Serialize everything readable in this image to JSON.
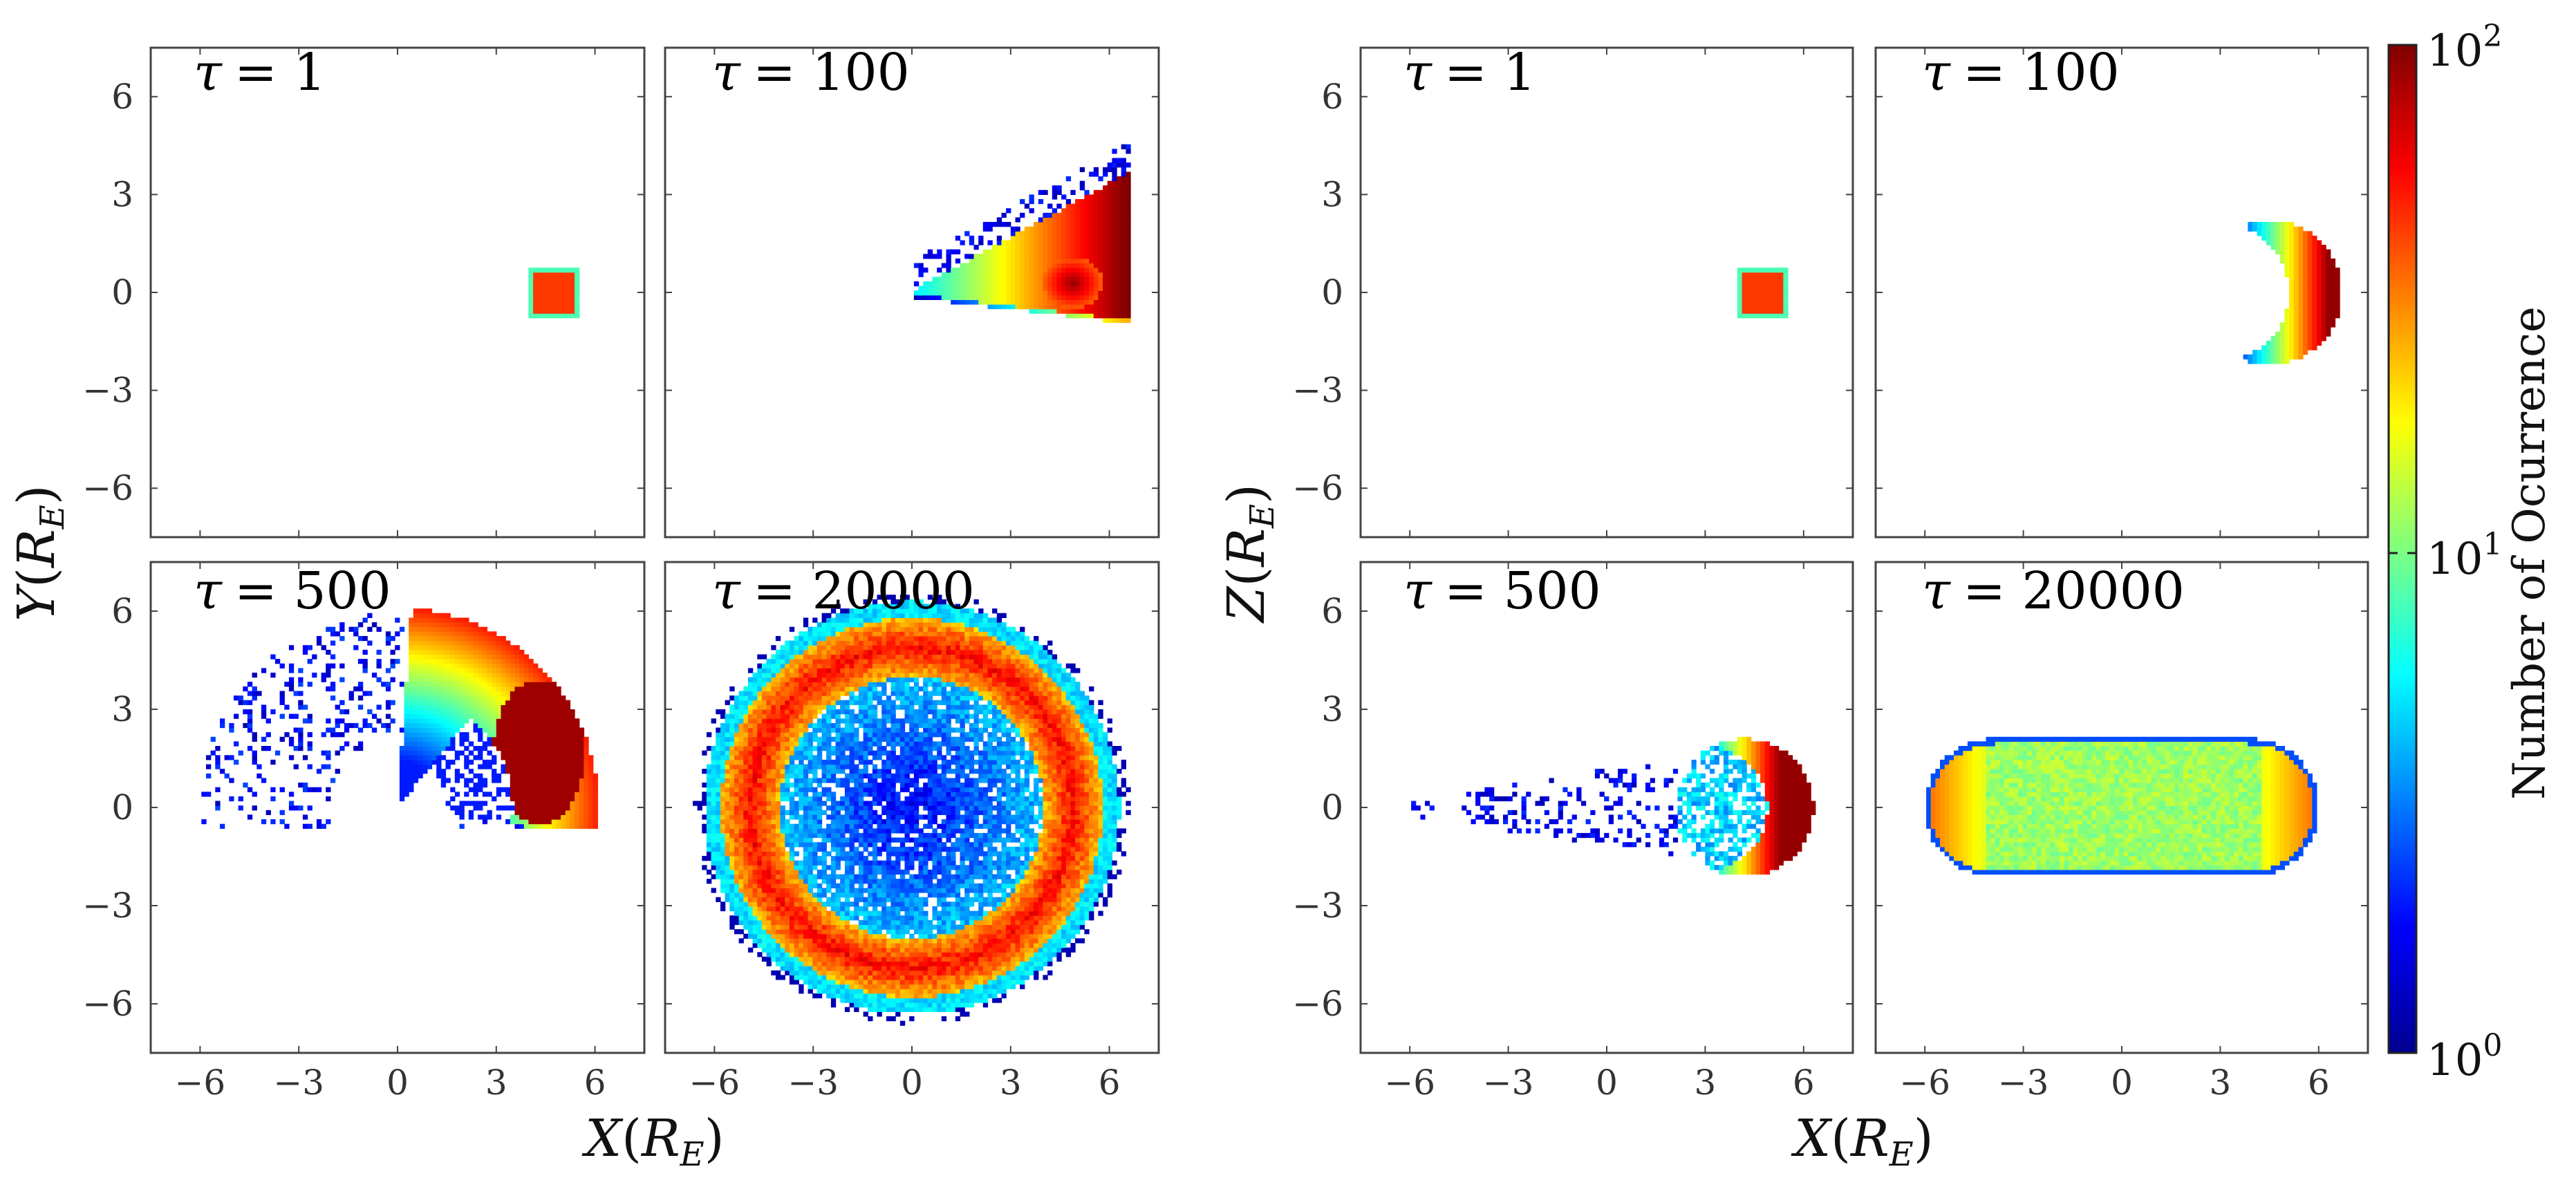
{
  "chart_data": {
    "type": "heatmap",
    "colorbar": {
      "label": "Number of Ocurrence",
      "scale": "log",
      "min_label_base": "10",
      "min_label_exp": "0",
      "max_label_base": "10",
      "max_label_exp": "2",
      "mid_label_base": "10",
      "mid_label_exp": "1",
      "range": [
        1,
        100
      ],
      "colormap": "jet"
    },
    "groups": [
      {
        "id": "xy",
        "xlabel_var": "X",
        "xlabel_unit": "R",
        "xlabel_sub": "E",
        "ylabel_var": "Y",
        "ylabel_unit": "R",
        "ylabel_sub": "E",
        "xticks": [
          -6,
          -3,
          0,
          3,
          6
        ],
        "yticks": [
          6,
          3,
          0,
          -3,
          -6
        ],
        "xticks_text": [
          "−6",
          "−3",
          "0",
          "3",
          "6"
        ],
        "yticks_text": [
          "6",
          "3",
          "0",
          "−3",
          "−6"
        ],
        "xlim": [
          -7.5,
          7.5
        ],
        "ylim": [
          -7.5,
          7.5
        ],
        "panels": [
          {
            "tau_symbol": "τ",
            "tau_eq": "= 1",
            "tau": 1,
            "shape": "square",
            "center": [
              4.75,
              0
            ],
            "half_width": 0.75
          },
          {
            "tau_symbol": "τ",
            "tau_eq": "= 100",
            "tau": 100,
            "shape": "wedge",
            "apex": [
              0,
              0
            ],
            "core": [
              4.9,
              0.3
            ],
            "max_value": 100
          },
          {
            "tau_symbol": "τ",
            "tau_eq": "= 500",
            "tau": 500,
            "shape": "crescent-blob",
            "core": [
              4.2,
              2.0
            ],
            "max_value": 100
          },
          {
            "tau_symbol": "τ",
            "tau_eq": "= 20000",
            "tau": 20000,
            "shape": "ring",
            "center": [
              0,
              0
            ],
            "ring_radius": 4.9,
            "outer_radius": 6.3
          }
        ]
      },
      {
        "id": "xz",
        "xlabel_var": "X",
        "xlabel_unit": "R",
        "xlabel_sub": "E",
        "ylabel_var": "Z",
        "ylabel_unit": "R",
        "ylabel_sub": "E",
        "xticks": [
          -6,
          -3,
          0,
          3,
          6
        ],
        "yticks": [
          6,
          3,
          0,
          -3,
          -6
        ],
        "xticks_text": [
          "−6",
          "−3",
          "0",
          "3",
          "6"
        ],
        "yticks_text": [
          "6",
          "3",
          "0",
          "−3",
          "−6"
        ],
        "xlim": [
          -7.5,
          7.5
        ],
        "ylim": [
          -7.5,
          7.5
        ],
        "panels": [
          {
            "tau_symbol": "τ",
            "tau_eq": "= 1",
            "tau": 1,
            "shape": "square",
            "center": [
              4.75,
              0
            ],
            "half_width": 0.75
          },
          {
            "tau_symbol": "τ",
            "tau_eq": "= 100",
            "tau": 100,
            "shape": "crescent",
            "center": [
              4.5,
              0
            ],
            "outer_radius": 2.2,
            "max_value": 100
          },
          {
            "tau_symbol": "τ",
            "tau_eq": "= 500",
            "tau": 500,
            "shape": "crescent-tail",
            "center": [
              4.2,
              0
            ],
            "outer_radius": 2.1,
            "tail_to": -6.0
          },
          {
            "tau_symbol": "τ",
            "tau_eq": "= 20000",
            "tau": 20000,
            "shape": "stadium",
            "x_range": [
              -6.0,
              6.0
            ],
            "z_range": [
              -2.1,
              2.1
            ]
          }
        ]
      }
    ]
  }
}
